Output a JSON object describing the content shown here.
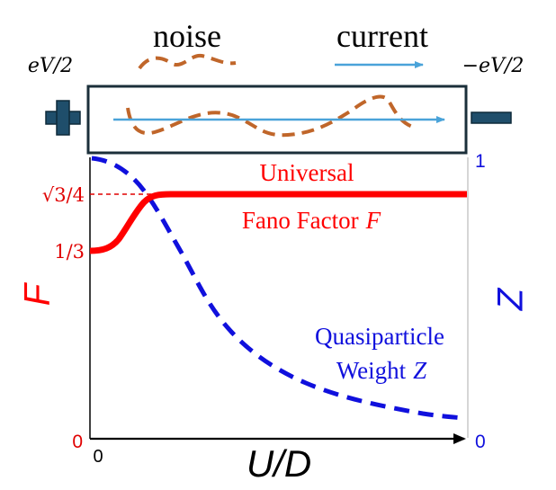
{
  "schematic": {
    "noise_label": "noise",
    "current_label": "current",
    "left_voltage": "eV/2",
    "right_voltage": "−eV/2",
    "left_terminal": "plus",
    "right_terminal": "minus",
    "noise_color": "#C0662A",
    "current_color": "#4AA3D9",
    "terminal_color": "#1F4E6B"
  },
  "plot": {
    "x_axis_label": "U/D",
    "x_tick_zero": "0",
    "left_axis_label": "F",
    "right_axis_label": "Z",
    "left_ticks": {
      "sqrt3_over_4": "√3/4",
      "one_third": "1/3",
      "zero": "0"
    },
    "right_ticks": {
      "one": "1",
      "zero": "0"
    },
    "fano_label": {
      "line1": "Universal",
      "line2": "Fano Factor",
      "symbol": "F"
    },
    "qp_label": {
      "line1": "Quasiparticle",
      "line2": "Weight",
      "symbol": "Z"
    },
    "fano_color": "#FF0000",
    "z_color": "#1010DD"
  }
}
